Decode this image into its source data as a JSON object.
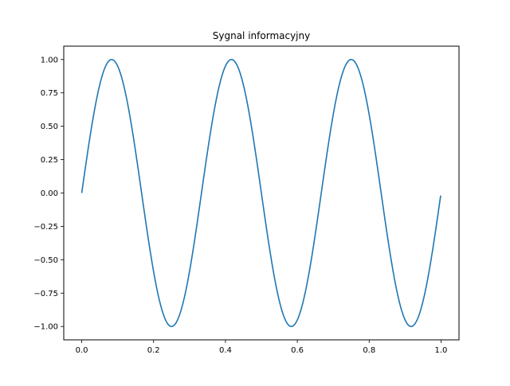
{
  "chart_data": {
    "type": "line",
    "title": "Sygnal informacyjny",
    "xlabel": "",
    "ylabel": "",
    "xlim": [
      -0.05,
      1.05
    ],
    "ylim": [
      -1.1,
      1.1
    ],
    "x_ticks": [
      0.0,
      0.2,
      0.4,
      0.6,
      0.8,
      1.0
    ],
    "x_tick_labels": [
      "0.0",
      "0.2",
      "0.4",
      "0.6",
      "0.8",
      "1.0"
    ],
    "y_ticks": [
      1.0,
      0.75,
      0.5,
      0.25,
      0.0,
      -0.25,
      -0.5,
      -0.75,
      -1.0
    ],
    "y_tick_labels": [
      "1.00",
      "0.75",
      "0.50",
      "0.25",
      "0.00",
      "−0.25",
      "−0.50",
      "−0.75",
      "−1.00"
    ],
    "grid": false,
    "series": [
      {
        "color": "#1f77b4",
        "function": "sin(2*pi*3*x)",
        "x_range": [
          0.0,
          0.999
        ],
        "x": [
          0.0,
          0.0833,
          0.1667,
          0.25,
          0.3333,
          0.4167,
          0.5,
          0.5833,
          0.6667,
          0.75,
          0.8333,
          0.9167,
          0.999
        ],
        "y": [
          0.0,
          1.0,
          0.0,
          -1.0,
          0.0,
          1.0,
          0.0,
          -1.0,
          0.0,
          1.0,
          0.0,
          -1.0,
          -0.02
        ]
      }
    ]
  }
}
